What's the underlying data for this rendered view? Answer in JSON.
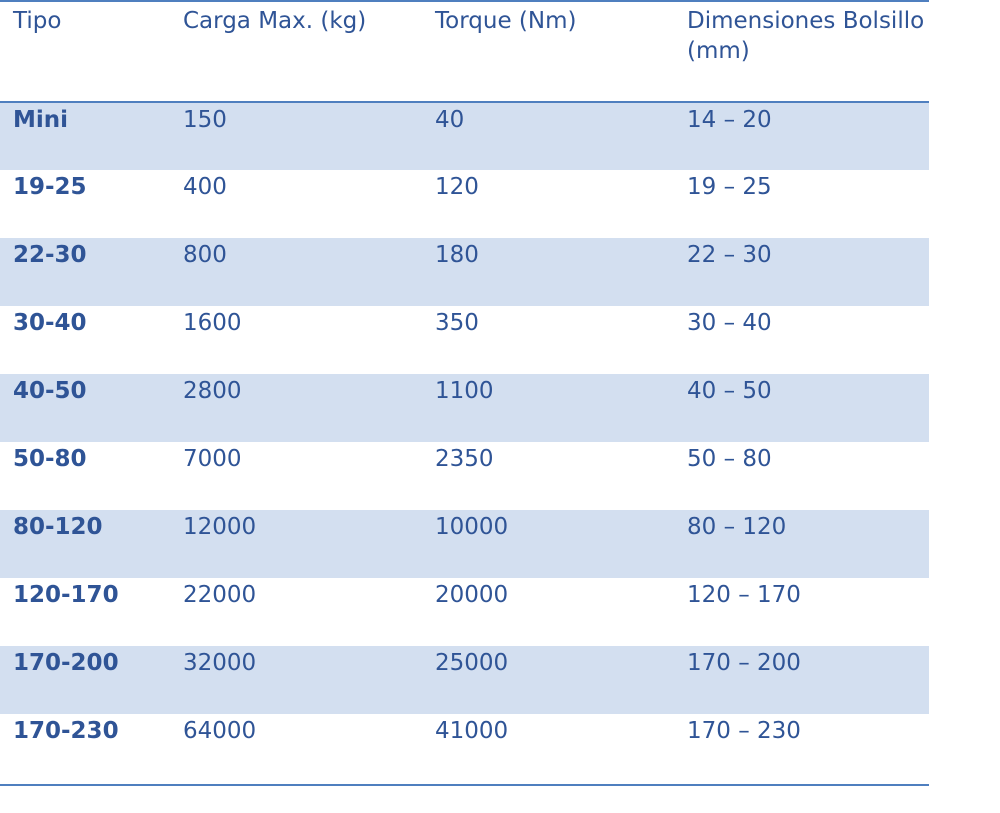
{
  "headers": [
    "Tipo",
    "Carga Max. (kg)",
    "Torque (Nm)",
    "Dimensiones Bolsillo (mm)"
  ],
  "rows": [
    {
      "tipo": "Mini",
      "carga": "150",
      "torque": "40",
      "dim": "14 – 20"
    },
    {
      "tipo": "19-25",
      "carga": "400",
      "torque": "120",
      "dim": "19 – 25"
    },
    {
      "tipo": "22-30",
      "carga": "800",
      "torque": "180",
      "dim": "22 – 30"
    },
    {
      "tipo": "30-40",
      "carga": "1600",
      "torque": "350",
      "dim": "30 – 40"
    },
    {
      "tipo": "40-50",
      "carga": "2800",
      "torque": "1100",
      "dim": "40 – 50"
    },
    {
      "tipo": "50-80",
      "carga": "7000",
      "torque": "2350",
      "dim": "50 – 80"
    },
    {
      "tipo": "80-120",
      "carga": "12000",
      "torque": "10000",
      "dim": "80 – 120"
    },
    {
      "tipo": "120-170",
      "carga": "22000",
      "torque": "20000",
      "dim": "120 – 170"
    },
    {
      "tipo": "170-200",
      "carga": "32000",
      "torque": "25000",
      "dim": "170 – 200"
    },
    {
      "tipo": "170-230",
      "carga": "64000",
      "torque": "41000",
      "dim": "170 – 230"
    }
  ],
  "colors": {
    "text": "#2f5496",
    "rule": "#4f7fbf",
    "band": "#d3dff0"
  }
}
